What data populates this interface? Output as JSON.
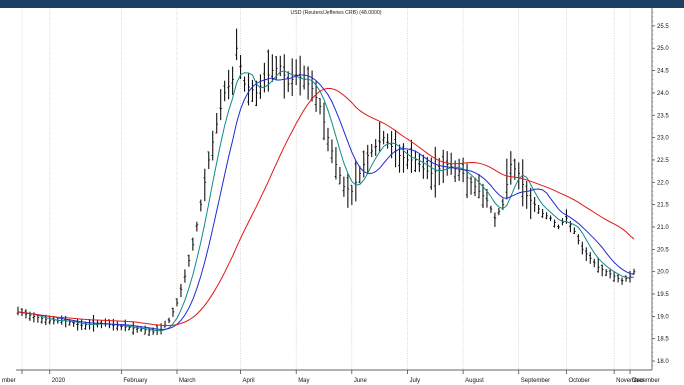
{
  "colors": {
    "header_bar": "#1d3f66",
    "ohlc_bars": "#111111",
    "fast_ma": "#138a8a",
    "mid_ma": "#1f2ad6",
    "slow_ma": "#e01818",
    "grid": "#b8b8b8"
  },
  "chart_data": {
    "type": "ohlc",
    "title": "USD (Reuters/Jefferies CRB) (48.0000)",
    "grid": true,
    "y_axis_position": "right",
    "ylim": [
      17.8,
      25.9
    ],
    "y_ticks": [
      18.0,
      18.5,
      19.0,
      19.5,
      20.0,
      20.5,
      21.0,
      21.5,
      22.0,
      22.5,
      23.0,
      23.5,
      24.0,
      24.5,
      25.0,
      25.5
    ],
    "x_ticks": [
      "mber",
      "2020",
      "February",
      "March",
      "April",
      "May",
      "June",
      "July",
      "August",
      "September",
      "October",
      "November",
      "December"
    ],
    "close_anchors": [
      [
        0,
        19.1
      ],
      [
        4,
        19.0
      ],
      [
        8,
        18.9
      ],
      [
        12,
        18.9
      ],
      [
        16,
        18.8
      ],
      [
        20,
        18.85
      ],
      [
        24,
        18.8
      ],
      [
        28,
        18.75
      ],
      [
        32,
        18.7
      ],
      [
        34,
        18.65
      ],
      [
        36,
        18.7
      ],
      [
        38,
        18.9
      ],
      [
        40,
        19.3
      ],
      [
        42,
        19.9
      ],
      [
        44,
        20.6
      ],
      [
        46,
        21.5
      ],
      [
        48,
        22.5
      ],
      [
        50,
        23.3
      ],
      [
        52,
        24.0
      ],
      [
        54,
        24.3
      ],
      [
        55,
        25.0
      ],
      [
        57,
        24.2
      ],
      [
        60,
        24.0
      ],
      [
        62,
        24.3
      ],
      [
        64,
        24.5
      ],
      [
        66,
        24.6
      ],
      [
        68,
        24.2
      ],
      [
        70,
        24.4
      ],
      [
        72,
        24.3
      ],
      [
        74,
        24.1
      ],
      [
        76,
        23.7
      ],
      [
        78,
        23.0
      ],
      [
        80,
        22.4
      ],
      [
        82,
        21.9
      ],
      [
        84,
        21.8
      ],
      [
        86,
        22.2
      ],
      [
        88,
        22.6
      ],
      [
        90,
        22.8
      ],
      [
        92,
        23.0
      ],
      [
        94,
        22.8
      ],
      [
        96,
        22.6
      ],
      [
        98,
        22.5
      ],
      [
        100,
        22.5
      ],
      [
        102,
        22.3
      ],
      [
        104,
        22.2
      ],
      [
        106,
        22.3
      ],
      [
        108,
        22.4
      ],
      [
        110,
        22.3
      ],
      [
        112,
        22.2
      ],
      [
        114,
        22.0
      ],
      [
        116,
        21.8
      ],
      [
        118,
        21.6
      ],
      [
        120,
        21.2
      ],
      [
        122,
        21.5
      ],
      [
        124,
        22.4
      ],
      [
        126,
        22.2
      ],
      [
        128,
        21.7
      ],
      [
        130,
        21.5
      ],
      [
        132,
        21.3
      ],
      [
        134,
        21.2
      ],
      [
        136,
        21.0
      ],
      [
        138,
        21.2
      ],
      [
        140,
        20.9
      ],
      [
        142,
        20.5
      ],
      [
        144,
        20.3
      ],
      [
        146,
        20.1
      ],
      [
        148,
        20.0
      ],
      [
        150,
        19.9
      ],
      [
        152,
        19.8
      ],
      [
        154,
        19.9
      ],
      [
        155,
        20.0
      ]
    ],
    "series": [
      {
        "name": "",
        "role": "fast",
        "period": 5
      },
      {
        "name": "",
        "role": "mid",
        "period": 10
      },
      {
        "name": "",
        "role": "slow",
        "period": 30
      }
    ]
  }
}
